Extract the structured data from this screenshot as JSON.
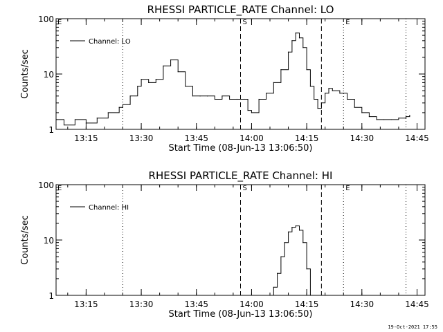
{
  "chart_data": [
    {
      "type": "line",
      "title": "RHESSI PARTICLE_RATE Channel: LO",
      "xlabel": "Start Time (08-Jun-13 13:06:50)",
      "ylabel": "Counts/sec",
      "yscale": "log",
      "ylim": [
        1,
        100
      ],
      "yticks": [
        1,
        10,
        100
      ],
      "ytick_labels": [
        "1",
        "10",
        "100"
      ],
      "xlim": [
        "13:06:50",
        "14:47:10"
      ],
      "xticks": [
        "13:15",
        "13:30",
        "13:45",
        "14:00",
        "14:15",
        "14:30",
        "14:45"
      ],
      "grid": false,
      "legend": {
        "position": "top-left",
        "entries": [
          "Channel: LO"
        ]
      },
      "series": [
        {
          "name": "Channel: LO",
          "x": [
            "13:07",
            "13:09",
            "13:12",
            "13:15",
            "13:18",
            "13:21",
            "13:24",
            "13:25",
            "13:27",
            "13:29",
            "13:30",
            "13:32",
            "13:34",
            "13:36",
            "13:38",
            "13:40",
            "13:42",
            "13:44",
            "13:46",
            "13:48",
            "13:50",
            "13:52",
            "13:54",
            "13:56",
            "13:58",
            "13:59",
            "14:00",
            "14:02",
            "14:04",
            "14:06",
            "14:08",
            "14:10",
            "14:11",
            "14:12",
            "14:13",
            "14:14",
            "14:15",
            "14:16",
            "14:17",
            "14:18",
            "14:19",
            "14:20",
            "14:21",
            "14:22",
            "14:24",
            "14:26",
            "14:28",
            "14:30",
            "14:32",
            "14:34",
            "14:36",
            "14:38",
            "14:40",
            "14:42",
            "14:43"
          ],
          "y": [
            1.5,
            1.2,
            1.5,
            1.3,
            1.6,
            2,
            2.5,
            2.8,
            4,
            6,
            8,
            7,
            8,
            14,
            18,
            11,
            6,
            4,
            4,
            4,
            3.5,
            4,
            3.5,
            3.5,
            3.5,
            2.2,
            2,
            3.5,
            4.5,
            7,
            12,
            25,
            40,
            55,
            45,
            30,
            12,
            6,
            3.5,
            2.4,
            3,
            4.5,
            5.5,
            5,
            4.5,
            3.5,
            2.5,
            2,
            1.7,
            1.5,
            1.5,
            1.5,
            1.6,
            1.7,
            1.8
          ]
        }
      ],
      "markers": [
        {
          "time": "13:25",
          "style": "dotted",
          "label": ""
        },
        {
          "time": "13:57",
          "style": "dashed",
          "label": "S"
        },
        {
          "time": "14:19",
          "style": "dashed",
          "label": ""
        },
        {
          "time": "14:25",
          "style": "dotted",
          "label": "E"
        },
        {
          "time": "14:42",
          "style": "dotted",
          "label": ""
        }
      ],
      "corner_label": "E"
    },
    {
      "type": "line",
      "title": "RHESSI PARTICLE_RATE Channel: HI",
      "xlabel": "Start Time (08-Jun-13 13:06:50)",
      "ylabel": "Counts/sec",
      "yscale": "log",
      "ylim": [
        1,
        100
      ],
      "yticks": [
        1,
        10,
        100
      ],
      "ytick_labels": [
        "1",
        "10",
        "100"
      ],
      "xlim": [
        "13:06:50",
        "14:47:10"
      ],
      "xticks": [
        "13:15",
        "13:30",
        "13:45",
        "14:00",
        "14:15",
        "14:30",
        "14:45"
      ],
      "grid": false,
      "legend": {
        "position": "top-left",
        "entries": [
          "Channel: HI"
        ]
      },
      "series": [
        {
          "name": "Channel: HI",
          "x": [
            "14:05",
            "14:06",
            "14:07",
            "14:08",
            "14:09",
            "14:10",
            "14:11",
            "14:12",
            "14:13",
            "14:14",
            "14:15",
            "14:16"
          ],
          "y": [
            1,
            1.4,
            2.5,
            5,
            9,
            14,
            17,
            18,
            15,
            9,
            3,
            1
          ]
        }
      ],
      "markers": [
        {
          "time": "13:25",
          "style": "dotted",
          "label": ""
        },
        {
          "time": "13:57",
          "style": "dashed",
          "label": "S"
        },
        {
          "time": "14:19",
          "style": "dashed",
          "label": ""
        },
        {
          "time": "14:25",
          "style": "dotted",
          "label": "E"
        },
        {
          "time": "14:42",
          "style": "dotted",
          "label": ""
        }
      ],
      "corner_label": "E"
    }
  ],
  "footer": {
    "timestamp": "19-Oct-2021 17:55"
  }
}
